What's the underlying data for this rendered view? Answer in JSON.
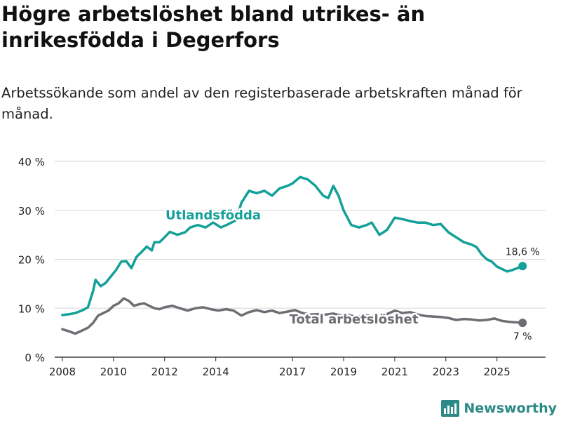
{
  "title": "Högre arbetslöshet bland utrikes- än inrikesfödda i Degerfors",
  "subtitle": "Arbetssökande som andel av den registerbaserade arbetskraften månad för månad.",
  "brand": "Newsworthy",
  "chart_data": {
    "type": "line",
    "title": "Högre arbetslöshet bland utrikes- än inrikesfödda i Degerfors",
    "xlabel": "",
    "ylabel": "",
    "xlim": [
      2007.7,
      2026.9
    ],
    "ylim": [
      0,
      40
    ],
    "y_ticks": [
      0,
      10,
      20,
      30,
      40
    ],
    "y_tick_labels": [
      "0 %",
      "10 %",
      "20 %",
      "30 %",
      "40 %"
    ],
    "x_ticks": [
      2008,
      2010,
      2012,
      2014,
      2017,
      2019,
      2021,
      2023,
      2025
    ],
    "x_tick_labels": [
      "2008",
      "2010",
      "2012",
      "2014",
      "2017",
      "2019",
      "2021",
      "2023",
      "2025"
    ],
    "grid": true,
    "series": [
      {
        "name": "Utlandsfödda",
        "color": "#13a098",
        "end_label": "18,6 %",
        "x": [
          2008.0,
          2008.3,
          2008.5,
          2008.8,
          2009.0,
          2009.2,
          2009.3,
          2009.5,
          2009.7,
          2009.9,
          2010.1,
          2010.3,
          2010.5,
          2010.7,
          2010.9,
          2011.1,
          2011.3,
          2011.5,
          2011.6,
          2011.8,
          2012.0,
          2012.2,
          2012.5,
          2012.8,
          2013.0,
          2013.3,
          2013.6,
          2013.9,
          2014.2,
          2014.5,
          2014.8,
          2015.0,
          2015.3,
          2015.6,
          2015.9,
          2016.2,
          2016.5,
          2016.8,
          2017.0,
          2017.3,
          2017.6,
          2017.9,
          2018.2,
          2018.4,
          2018.6,
          2018.8,
          2019.0,
          2019.3,
          2019.6,
          2019.9,
          2020.1,
          2020.4,
          2020.7,
          2021.0,
          2021.3,
          2021.6,
          2021.9,
          2022.2,
          2022.5,
          2022.8,
          2023.1,
          2023.4,
          2023.7,
          2024.0,
          2024.2,
          2024.4,
          2024.6,
          2024.8,
          2025.0,
          2025.2,
          2025.4,
          2025.6,
          2025.8,
          2026.0
        ],
        "values": [
          8.6,
          8.8,
          9.0,
          9.6,
          10.2,
          13.5,
          15.8,
          14.5,
          15.2,
          16.5,
          17.8,
          19.5,
          19.6,
          18.2,
          20.5,
          21.5,
          22.6,
          21.8,
          23.5,
          23.5,
          24.5,
          25.6,
          25.0,
          25.5,
          26.5,
          27.0,
          26.5,
          27.5,
          26.5,
          27.2,
          28.0,
          31.5,
          34.0,
          33.5,
          34.0,
          33.0,
          34.5,
          35.0,
          35.5,
          36.8,
          36.3,
          35.0,
          33.0,
          32.5,
          35.0,
          33.0,
          30.0,
          27.0,
          26.5,
          27.0,
          27.5,
          25.0,
          26.0,
          28.5,
          28.2,
          27.8,
          27.5,
          27.5,
          27.0,
          27.2,
          25.5,
          24.5,
          23.5,
          23.0,
          22.5,
          21.0,
          20.0,
          19.5,
          18.5,
          18.0,
          17.5,
          17.8,
          18.2,
          18.6
        ]
      },
      {
        "name": "Total arbetslöshet",
        "color": "#6d6e73",
        "end_label": "7 %",
        "x": [
          2008.0,
          2008.3,
          2008.5,
          2008.8,
          2009.0,
          2009.2,
          2009.4,
          2009.6,
          2009.8,
          2010.0,
          2010.2,
          2010.4,
          2010.6,
          2010.8,
          2011.0,
          2011.2,
          2011.4,
          2011.6,
          2011.8,
          2012.0,
          2012.3,
          2012.6,
          2012.9,
          2013.2,
          2013.5,
          2013.8,
          2014.1,
          2014.4,
          2014.7,
          2015.0,
          2015.3,
          2015.6,
          2015.9,
          2016.2,
          2016.5,
          2016.8,
          2017.1,
          2017.4,
          2017.7,
          2018.0,
          2018.3,
          2018.6,
          2018.9,
          2019.2,
          2019.5,
          2019.8,
          2020.1,
          2020.4,
          2020.7,
          2021.0,
          2021.3,
          2021.6,
          2021.9,
          2022.2,
          2022.5,
          2022.8,
          2023.1,
          2023.4,
          2023.7,
          2024.0,
          2024.3,
          2024.6,
          2024.9,
          2025.2,
          2025.5,
          2025.8,
          2026.0
        ],
        "values": [
          5.7,
          5.2,
          4.8,
          5.5,
          6.0,
          7.0,
          8.5,
          9.0,
          9.5,
          10.5,
          11.0,
          12.0,
          11.5,
          10.5,
          10.8,
          11.0,
          10.5,
          10.0,
          9.8,
          10.2,
          10.5,
          10.0,
          9.5,
          10.0,
          10.2,
          9.8,
          9.5,
          9.8,
          9.5,
          8.5,
          9.2,
          9.6,
          9.2,
          9.5,
          9.0,
          9.3,
          9.6,
          9.0,
          8.7,
          8.8,
          8.7,
          8.9,
          8.5,
          8.6,
          8.2,
          8.6,
          8.4,
          8.4,
          8.8,
          9.5,
          9.0,
          9.2,
          8.7,
          8.4,
          8.3,
          8.2,
          8.0,
          7.6,
          7.8,
          7.7,
          7.5,
          7.6,
          7.9,
          7.4,
          7.2,
          7.1,
          7.0
        ]
      }
    ],
    "annotations": [
      {
        "text": "Utlandsfödda",
        "series": "Utlandsfödda"
      },
      {
        "text": "Total arbetslöshet",
        "series": "Total arbetslöshet"
      }
    ]
  }
}
